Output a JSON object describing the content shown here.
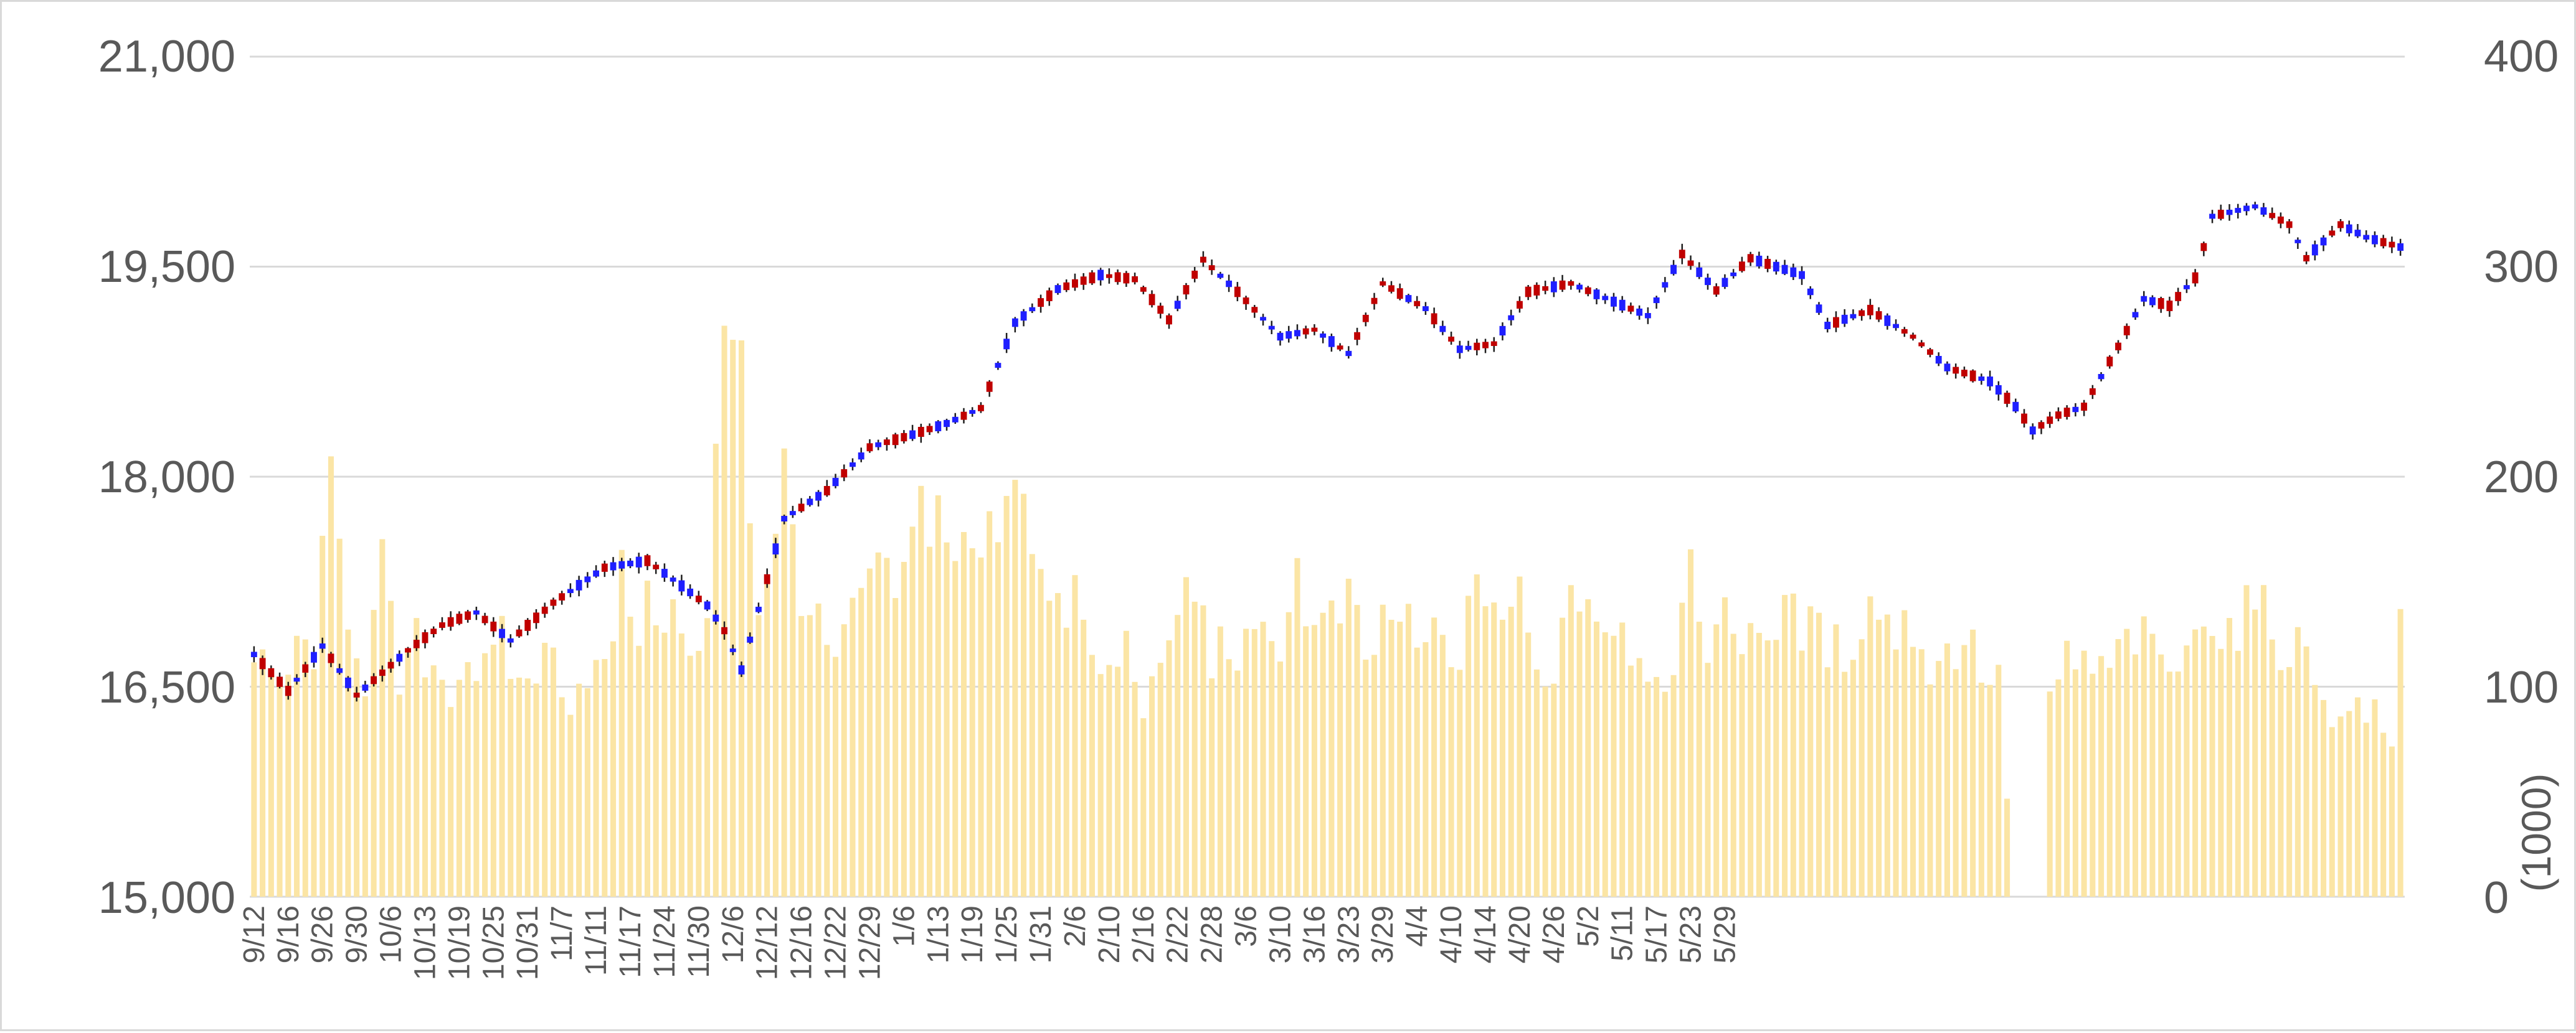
{
  "chart_data": {
    "type": "candlestick",
    "title": "",
    "y_left": {
      "ylim": [
        15000,
        21000
      ],
      "ticks": [
        "21,000",
        "19,500",
        "18,000",
        "16,500",
        "15,000"
      ],
      "tick_values": [
        21000,
        19500,
        18000,
        16500,
        15000
      ]
    },
    "y_right": {
      "ylim": [
        0,
        400
      ],
      "ticks": [
        "400",
        "300",
        "200",
        "100",
        "0"
      ],
      "tick_values": [
        400,
        300,
        200,
        100,
        0
      ],
      "unit_label": "(1000)"
    },
    "x_tick_labels": [
      "9/12",
      "9/16",
      "9/26",
      "9/30",
      "10/6",
      "10/13",
      "10/19",
      "10/25",
      "10/31",
      "11/7",
      "11/11",
      "11/17",
      "11/24",
      "11/30",
      "12/6",
      "12/12",
      "12/16",
      "12/22",
      "12/29",
      "1/6",
      "1/13",
      "1/19",
      "1/25",
      "1/31",
      "2/6",
      "2/10",
      "2/16",
      "2/22",
      "2/28",
      "3/6",
      "3/10",
      "3/16",
      "3/23",
      "3/29",
      "4/4",
      "4/10",
      "4/14",
      "4/20",
      "4/26",
      "5/2",
      "5/11",
      "5/17",
      "5/23",
      "5/29"
    ],
    "x_tick_every": 4,
    "grid": true,
    "colors": {
      "up": "#c00000",
      "down": "#1f1fff",
      "doji": "#1f1f1f",
      "volume": "#fbe5a5",
      "grid": "#d9d9d9",
      "axis_text": "#595959"
    },
    "price_anchors": [
      [
        0,
        16730
      ],
      [
        4,
        16470
      ],
      [
        8,
        16790
      ],
      [
        12,
        16440
      ],
      [
        18,
        16760
      ],
      [
        22,
        16940
      ],
      [
        26,
        17030
      ],
      [
        30,
        16830
      ],
      [
        35,
        17100
      ],
      [
        41,
        17350
      ],
      [
        46,
        17400
      ],
      [
        50,
        17220
      ],
      [
        53,
        17080
      ],
      [
        55,
        16900
      ],
      [
        57,
        16620
      ],
      [
        62,
        17700
      ],
      [
        67,
        17900
      ],
      [
        72,
        18210
      ],
      [
        77,
        18300
      ],
      [
        81,
        18380
      ],
      [
        85,
        18490
      ],
      [
        89,
        19100
      ],
      [
        94,
        19340
      ],
      [
        99,
        19440
      ],
      [
        103,
        19410
      ],
      [
        107,
        19120
      ],
      [
        111,
        19550
      ],
      [
        115,
        19320
      ],
      [
        120,
        19000
      ],
      [
        124,
        19050
      ],
      [
        128,
        18880
      ],
      [
        132,
        19380
      ],
      [
        137,
        19200
      ],
      [
        141,
        18910
      ],
      [
        145,
        18950
      ],
      [
        149,
        19320
      ],
      [
        154,
        19380
      ],
      [
        159,
        19250
      ],
      [
        163,
        19150
      ],
      [
        167,
        19590
      ],
      [
        171,
        19330
      ],
      [
        175,
        19560
      ],
      [
        181,
        19440
      ],
      [
        184,
        19080
      ],
      [
        189,
        19190
      ],
      [
        194,
        19000
      ],
      [
        198,
        18780
      ],
      [
        203,
        18680
      ],
      [
        206,
        18500
      ],
      [
        208,
        18330
      ],
      [
        211,
        18440
      ],
      [
        214,
        18500
      ],
      [
        218,
        18930
      ],
      [
        221,
        19270
      ],
      [
        224,
        19220
      ],
      [
        227,
        19420
      ],
      [
        229,
        19860
      ],
      [
        234,
        19930
      ],
      [
        238,
        19800
      ],
      [
        240,
        19560
      ],
      [
        244,
        19800
      ],
      [
        247,
        19710
      ],
      [
        251,
        19640
      ]
    ],
    "volume_anchors": [
      [
        0,
        110
      ],
      [
        3,
        100
      ],
      [
        5,
        115
      ],
      [
        7,
        120
      ],
      [
        9,
        190
      ],
      [
        11,
        140
      ],
      [
        13,
        105
      ],
      [
        15,
        155
      ],
      [
        17,
        100
      ],
      [
        19,
        120
      ],
      [
        21,
        110
      ],
      [
        23,
        100
      ],
      [
        25,
        115
      ],
      [
        27,
        105
      ],
      [
        29,
        120
      ],
      [
        31,
        100
      ],
      [
        33,
        110
      ],
      [
        35,
        115
      ],
      [
        37,
        95
      ],
      [
        39,
        110
      ],
      [
        41,
        105
      ],
      [
        43,
        150
      ],
      [
        45,
        130
      ],
      [
        47,
        140
      ],
      [
        49,
        135
      ],
      [
        51,
        110
      ],
      [
        53,
        125
      ],
      [
        55,
        280
      ],
      [
        56,
        275
      ],
      [
        57,
        285
      ],
      [
        58,
        180
      ],
      [
        59,
        140
      ],
      [
        60,
        160
      ],
      [
        61,
        165
      ],
      [
        62,
        200
      ],
      [
        64,
        150
      ],
      [
        66,
        125
      ],
      [
        68,
        110
      ],
      [
        70,
        130
      ],
      [
        72,
        155
      ],
      [
        74,
        145
      ],
      [
        76,
        150
      ],
      [
        78,
        185
      ],
      [
        80,
        185
      ],
      [
        82,
        165
      ],
      [
        84,
        160
      ],
      [
        86,
        170
      ],
      [
        88,
        200
      ],
      [
        90,
        205
      ],
      [
        92,
        150
      ],
      [
        94,
        130
      ],
      [
        96,
        145
      ],
      [
        98,
        110
      ],
      [
        100,
        105
      ],
      [
        102,
        120
      ],
      [
        104,
        95
      ],
      [
        106,
        100
      ],
      [
        108,
        140
      ],
      [
        110,
        145
      ],
      [
        112,
        115
      ],
      [
        114,
        120
      ],
      [
        116,
        115
      ],
      [
        118,
        120
      ],
      [
        120,
        125
      ],
      [
        122,
        155
      ],
      [
        124,
        125
      ],
      [
        126,
        130
      ],
      [
        128,
        140
      ],
      [
        130,
        110
      ],
      [
        132,
        130
      ],
      [
        134,
        135
      ],
      [
        136,
        115
      ],
      [
        138,
        125
      ],
      [
        140,
        110
      ],
      [
        142,
        130
      ],
      [
        144,
        150
      ],
      [
        146,
        135
      ],
      [
        148,
        140
      ],
      [
        150,
        105
      ],
      [
        152,
        110
      ],
      [
        154,
        150
      ],
      [
        156,
        145
      ],
      [
        158,
        130
      ],
      [
        160,
        135
      ],
      [
        162,
        110
      ],
      [
        164,
        115
      ],
      [
        166,
        100
      ],
      [
        168,
        150
      ],
      [
        170,
        125
      ],
      [
        172,
        130
      ],
      [
        174,
        125
      ],
      [
        176,
        135
      ],
      [
        178,
        120
      ],
      [
        180,
        140
      ],
      [
        182,
        125
      ],
      [
        184,
        120
      ],
      [
        186,
        115
      ],
      [
        188,
        135
      ],
      [
        190,
        140
      ],
      [
        192,
        125
      ],
      [
        194,
        130
      ],
      [
        196,
        110
      ],
      [
        198,
        115
      ],
      [
        200,
        125
      ],
      [
        202,
        110
      ],
      [
        204,
        100
      ],
      [
        206,
        0
      ],
      [
        209,
        0
      ],
      [
        210,
        90
      ],
      [
        212,
        115
      ],
      [
        214,
        110
      ],
      [
        216,
        105
      ],
      [
        218,
        115
      ],
      [
        220,
        125
      ],
      [
        222,
        115
      ],
      [
        224,
        110
      ],
      [
        226,
        110
      ],
      [
        228,
        145
      ],
      [
        230,
        125
      ],
      [
        232,
        130
      ],
      [
        234,
        140
      ],
      [
        236,
        125
      ],
      [
        238,
        120
      ],
      [
        240,
        115
      ],
      [
        242,
        100
      ],
      [
        244,
        80
      ],
      [
        246,
        95
      ],
      [
        248,
        85
      ],
      [
        250,
        70
      ],
      [
        251,
        130
      ]
    ]
  }
}
